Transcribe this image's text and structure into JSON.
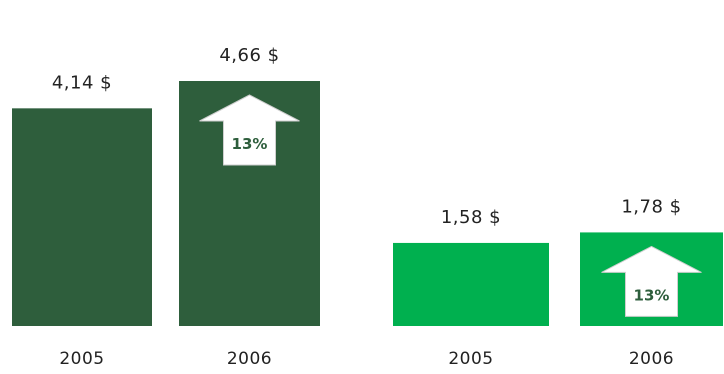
{
  "chart_data": [
    {
      "type": "bar",
      "categories": [
        "2005",
        "2006"
      ],
      "values": [
        4.14,
        4.66
      ],
      "value_labels": [
        "4,14 $",
        "4,66 $"
      ],
      "growth_label": "13%",
      "color": "#2e5e3c"
    },
    {
      "type": "bar",
      "categories": [
        "2005",
        "2006"
      ],
      "values": [
        1.58,
        1.78
      ],
      "value_labels": [
        "1,58 $",
        "1,78 $"
      ],
      "growth_label": "13%",
      "color": "#00b04f"
    }
  ]
}
